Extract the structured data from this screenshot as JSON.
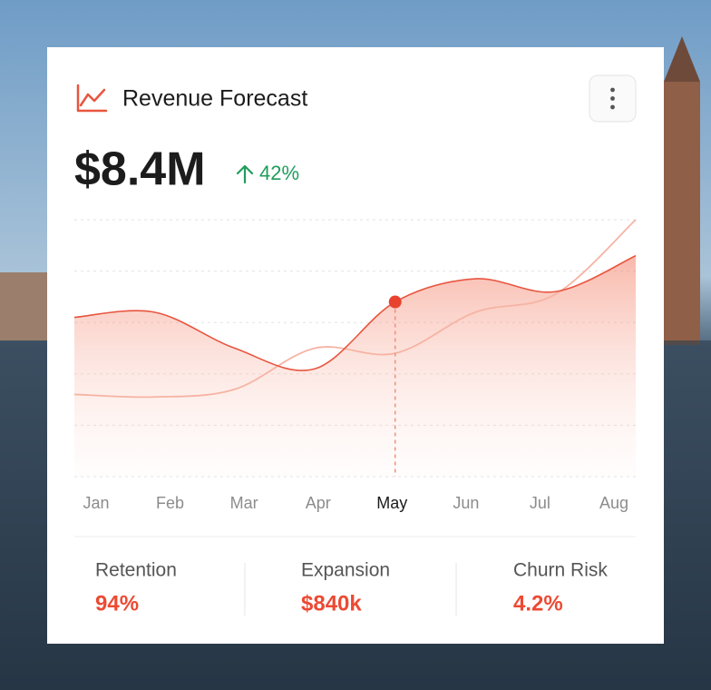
{
  "card": {
    "title": "Revenue Forecast",
    "total": "$8.4M",
    "change": "42%"
  },
  "chart_data": {
    "type": "line",
    "categories": [
      "Jan",
      "Feb",
      "Mar",
      "Apr",
      "May",
      "Jun",
      "Jul",
      "Aug"
    ],
    "series": [
      {
        "color": "#e8553f",
        "values": [
          62,
          64,
          50,
          42,
          68,
          77,
          72,
          86
        ]
      },
      {
        "color": "#f6b4a4",
        "values": [
          32,
          31,
          34,
          50,
          48,
          64,
          71,
          100
        ]
      }
    ],
    "ylim": [
      0,
      100
    ],
    "yticks": [
      0,
      20,
      40,
      60,
      80,
      100
    ],
    "grid": true,
    "highlight_category": "May"
  },
  "stats": [
    {
      "label": "Retention",
      "value": "94%"
    },
    {
      "label": "Expansion",
      "value": "$840k"
    },
    {
      "label": "Churn Risk",
      "value": "4.2%"
    }
  ]
}
